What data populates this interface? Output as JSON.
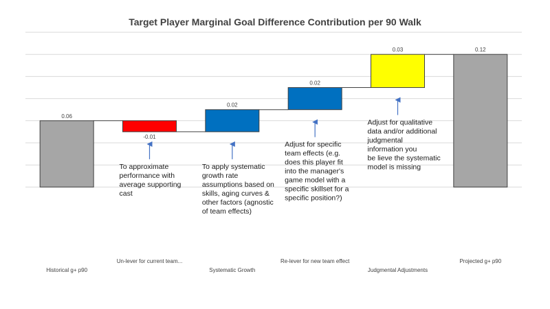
{
  "chart_data": {
    "type": "bar",
    "subtype": "waterfall",
    "title": "Target Player Marginal Goal Difference Contribution per 90 Walk",
    "xlabel": "",
    "ylabel": "",
    "ylim": [
      -0.06,
      0.14
    ],
    "grid": true,
    "legend": "none",
    "categories": [
      "Historical g+ p90",
      "Un-lever for current team...",
      "Systematic Growth",
      "Re-lever for new team effect",
      "Judgmental Adjustments",
      "Projected g+ p90"
    ],
    "values": [
      0.06,
      -0.01,
      0.02,
      0.02,
      0.03,
      0.12
    ],
    "bar_kinds": [
      "total",
      "delta",
      "delta",
      "delta",
      "delta",
      "total"
    ],
    "value_labels": [
      "0.06",
      "-0.01",
      "0.02",
      "0.02",
      "0.03",
      "0.12"
    ],
    "bar_colors": [
      "#a6a6a6",
      "#ff0000",
      "#0070c0",
      "#0070c0",
      "#ffff00",
      "#a6a6a6"
    ],
    "annotations": [
      {
        "target": 1,
        "lines": [
          "To approximate",
          "performance with",
          "average supporting",
          "cast"
        ]
      },
      {
        "target": 2,
        "lines": [
          "To apply systematic",
          "growth rate",
          "assumptions based on",
          "skills, aging curves &",
          "other factors (agnostic",
          "of team effects)"
        ]
      },
      {
        "target": 3,
        "lines": [
          "Adjust for specific",
          "team effects (e.g.",
          "does this player fit",
          "into the manager's",
          "game model with a",
          "specific skillset for a",
          "specific position?)"
        ]
      },
      {
        "target": 4,
        "lines": [
          "Adjust for qualitative",
          "data and/or additional",
          "judgmental",
          "information you",
          "be lieve the systematic",
          "model is missing"
        ]
      }
    ]
  },
  "colors": {
    "grid": "#d9d9d9",
    "connector": "#404040",
    "outline": "#404040",
    "arrow": "#4472c4",
    "text": "#404040"
  }
}
